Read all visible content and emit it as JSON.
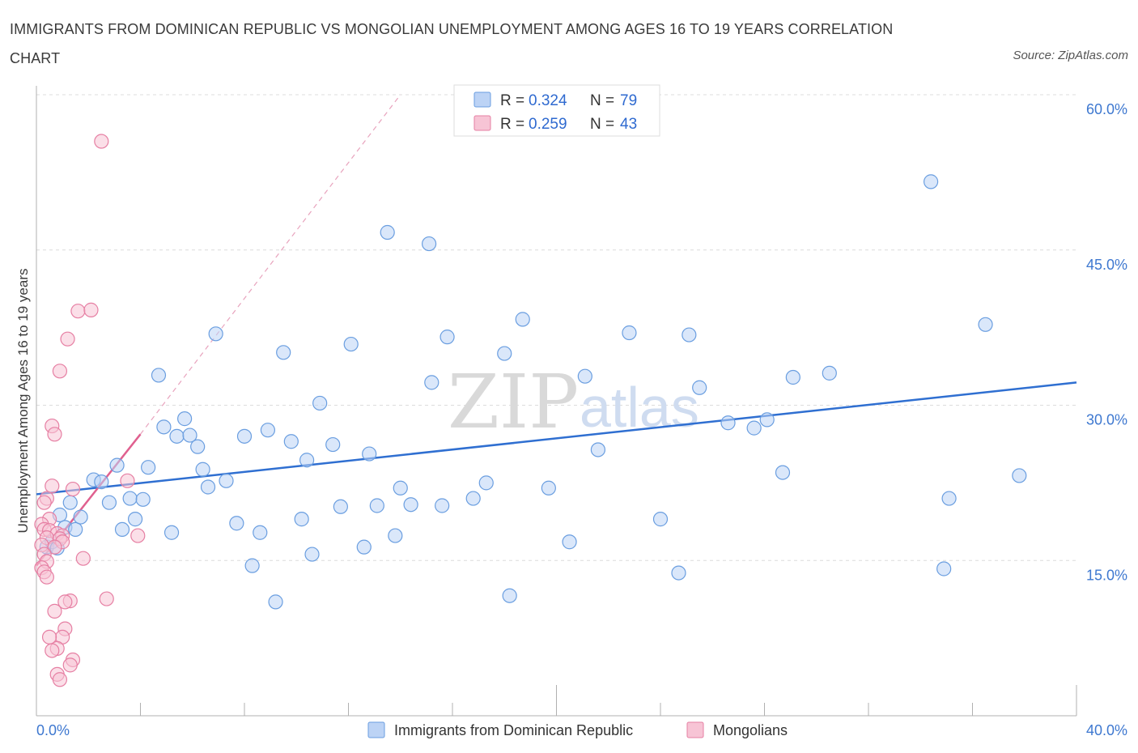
{
  "title": "IMMIGRANTS FROM DOMINICAN REPUBLIC VS MONGOLIAN UNEMPLOYMENT AMONG AGES 16 TO 19 YEARS CORRELATION CHART",
  "source": "Source: ZipAtlas.com",
  "watermark": {
    "zip": "ZIP",
    "atlas": "atlas"
  },
  "colors": {
    "blue": "#6a9ee0",
    "blue_fill": "#bcd3f5",
    "pink": "#e67fa3",
    "pink_fill": "#f7c4d5",
    "trend_blue": "#2f6fd1",
    "trend_pink": "#e0608f"
  },
  "legend": {
    "rows": [
      {
        "r_label": "R = ",
        "r_value": "0.324",
        "n_label": "N = ",
        "n_value": "79"
      },
      {
        "r_label": "R = ",
        "r_value": "0.259",
        "n_label": "N = ",
        "n_value": "43"
      }
    ]
  },
  "chart_data": {
    "type": "scatter",
    "title": "IMMIGRANTS FROM DOMINICAN REPUBLIC VS MONGOLIAN UNEMPLOYMENT AMONG AGES 16 TO 19 YEARS CORRELATION CHART",
    "xlabel": "",
    "ylabel": "Unemployment Among Ages 16 to 19 years",
    "xlim": [
      0,
      40
    ],
    "ylim": [
      0,
      60
    ],
    "x_tick_labels": [
      "0.0%",
      "40.0%"
    ],
    "y_ticks": [
      15,
      30,
      45,
      60
    ],
    "y_tick_labels": [
      "15.0%",
      "30.0%",
      "45.0%",
      "60.0%"
    ],
    "grid": true,
    "legend_position": "top-center",
    "series": [
      {
        "name": "Immigrants from Dominican Republic",
        "color": "#6a9ee0",
        "R": 0.324,
        "N": 79,
        "trend": {
          "x": [
            0,
            40
          ],
          "y": [
            21.4,
            32.2
          ],
          "style": "solid"
        },
        "points": [
          [
            0.4,
            16.3
          ],
          [
            0.6,
            16.8
          ],
          [
            0.9,
            19.4
          ],
          [
            1.1,
            18.2
          ],
          [
            1.3,
            20.6
          ],
          [
            1.5,
            18.0
          ],
          [
            1.7,
            19.2
          ],
          [
            2.2,
            22.8
          ],
          [
            2.5,
            22.6
          ],
          [
            2.8,
            20.6
          ],
          [
            3.1,
            24.2
          ],
          [
            3.3,
            18.0
          ],
          [
            3.6,
            21.0
          ],
          [
            3.8,
            19.0
          ],
          [
            4.1,
            20.9
          ],
          [
            4.3,
            24.0
          ],
          [
            4.7,
            32.9
          ],
          [
            4.9,
            27.9
          ],
          [
            5.2,
            17.7
          ],
          [
            5.4,
            27.0
          ],
          [
            5.7,
            28.7
          ],
          [
            5.9,
            27.1
          ],
          [
            6.2,
            26.0
          ],
          [
            6.4,
            23.8
          ],
          [
            6.6,
            22.1
          ],
          [
            6.9,
            36.9
          ],
          [
            7.3,
            22.7
          ],
          [
            7.7,
            18.6
          ],
          [
            8.0,
            27.0
          ],
          [
            8.3,
            14.5
          ],
          [
            8.6,
            17.7
          ],
          [
            8.9,
            27.6
          ],
          [
            9.2,
            11.0
          ],
          [
            9.5,
            35.1
          ],
          [
            9.8,
            26.5
          ],
          [
            10.2,
            19.0
          ],
          [
            10.4,
            24.7
          ],
          [
            10.6,
            15.6
          ],
          [
            10.9,
            30.2
          ],
          [
            11.4,
            26.2
          ],
          [
            11.7,
            20.2
          ],
          [
            12.1,
            35.9
          ],
          [
            12.6,
            16.3
          ],
          [
            12.8,
            25.3
          ],
          [
            13.1,
            20.3
          ],
          [
            13.5,
            46.7
          ],
          [
            13.8,
            17.4
          ],
          [
            14.0,
            22.0
          ],
          [
            14.4,
            20.4
          ],
          [
            15.1,
            45.6
          ],
          [
            15.2,
            32.2
          ],
          [
            15.6,
            20.3
          ],
          [
            15.8,
            36.6
          ],
          [
            16.8,
            21.0
          ],
          [
            17.3,
            22.5
          ],
          [
            18.0,
            35.0
          ],
          [
            18.2,
            11.6
          ],
          [
            18.7,
            38.3
          ],
          [
            19.7,
            22.0
          ],
          [
            20.5,
            16.8
          ],
          [
            21.1,
            32.8
          ],
          [
            21.6,
            25.7
          ],
          [
            22.8,
            37.0
          ],
          [
            24.0,
            19.0
          ],
          [
            24.7,
            13.8
          ],
          [
            25.1,
            36.8
          ],
          [
            25.5,
            31.7
          ],
          [
            26.6,
            28.3
          ],
          [
            27.6,
            27.8
          ],
          [
            28.1,
            28.6
          ],
          [
            28.7,
            23.5
          ],
          [
            29.1,
            32.7
          ],
          [
            30.5,
            33.1
          ],
          [
            34.4,
            51.6
          ],
          [
            34.9,
            14.2
          ],
          [
            35.1,
            21.0
          ],
          [
            36.5,
            37.8
          ],
          [
            37.8,
            23.2
          ],
          [
            0.8,
            16.2
          ]
        ]
      },
      {
        "name": "Mongolians",
        "color": "#e67fa3",
        "R": 0.259,
        "N": 43,
        "trend": {
          "x": [
            0,
            4.0
          ],
          "y": [
            14.5,
            27.2
          ],
          "style": "solid"
        },
        "trend_ext": {
          "x": [
            4.0,
            14.0
          ],
          "y": [
            27.2,
            60.0
          ],
          "style": "dashed"
        },
        "points": [
          [
            2.5,
            55.5
          ],
          [
            1.6,
            39.1
          ],
          [
            2.1,
            39.2
          ],
          [
            1.2,
            36.4
          ],
          [
            0.9,
            33.3
          ],
          [
            0.6,
            28.0
          ],
          [
            0.7,
            27.2
          ],
          [
            3.5,
            22.7
          ],
          [
            1.4,
            21.9
          ],
          [
            0.6,
            22.2
          ],
          [
            0.4,
            21.0
          ],
          [
            0.3,
            20.6
          ],
          [
            0.5,
            19.0
          ],
          [
            0.2,
            18.5
          ],
          [
            0.3,
            18.0
          ],
          [
            0.5,
            17.9
          ],
          [
            0.8,
            17.6
          ],
          [
            1.0,
            17.4
          ],
          [
            3.9,
            17.4
          ],
          [
            0.4,
            17.2
          ],
          [
            0.9,
            17.1
          ],
          [
            1.0,
            16.8
          ],
          [
            0.2,
            16.5
          ],
          [
            0.7,
            16.3
          ],
          [
            0.3,
            15.6
          ],
          [
            1.8,
            15.2
          ],
          [
            0.4,
            14.9
          ],
          [
            0.2,
            14.3
          ],
          [
            0.3,
            13.9
          ],
          [
            0.4,
            13.4
          ],
          [
            2.7,
            11.3
          ],
          [
            1.3,
            11.1
          ],
          [
            1.1,
            11.0
          ],
          [
            0.7,
            10.1
          ],
          [
            1.1,
            8.4
          ],
          [
            1.0,
            7.6
          ],
          [
            0.5,
            7.6
          ],
          [
            0.8,
            6.5
          ],
          [
            0.6,
            6.3
          ],
          [
            1.4,
            5.4
          ],
          [
            1.3,
            4.9
          ],
          [
            0.8,
            4.0
          ],
          [
            0.9,
            3.5
          ]
        ]
      }
    ]
  },
  "bottom_legend": [
    {
      "label": "Immigrants from Dominican Republic"
    },
    {
      "label": "Mongolians"
    }
  ]
}
